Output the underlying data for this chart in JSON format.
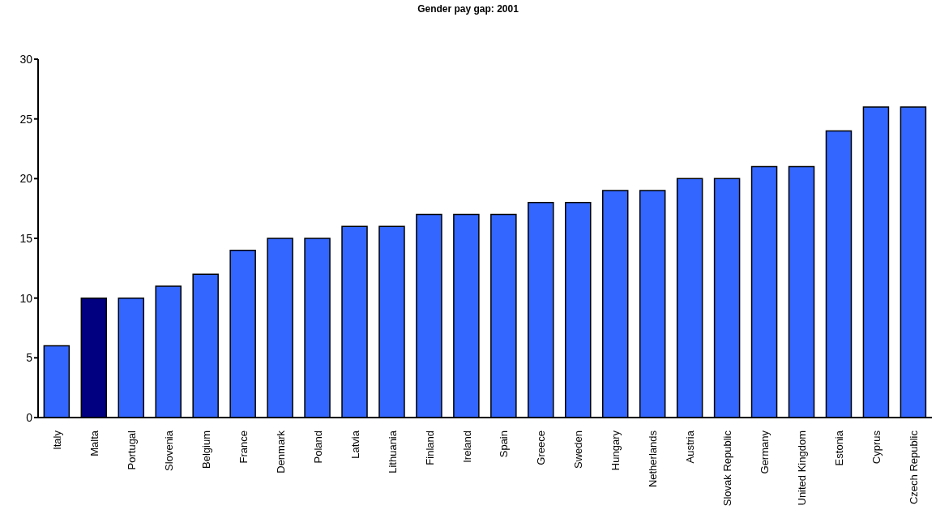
{
  "chart_data": {
    "type": "bar",
    "title": "Gender pay gap: 2001",
    "categories": [
      "Italy",
      "Malta",
      "Portugal",
      "Slovenia",
      "Belgium",
      "France",
      "Denmark",
      "Poland",
      "Latvia",
      "Lithuania",
      "Finland",
      "Ireland",
      "Spain",
      "Greece",
      "Sweden",
      "Hungary",
      "Netherlands",
      "Austria",
      "Slovak Republic",
      "Germany",
      "United Kingdom",
      "Estonia",
      "Cyprus",
      "Czech Republic"
    ],
    "values": [
      6,
      10,
      10,
      11,
      12,
      14,
      15,
      15,
      16,
      16,
      17,
      17,
      17,
      18,
      18,
      19,
      19,
      20,
      20,
      21,
      21,
      24,
      26,
      26
    ],
    "colors": [
      "#3366ff",
      "#000080",
      "#3366ff",
      "#3366ff",
      "#3366ff",
      "#3366ff",
      "#3366ff",
      "#3366ff",
      "#3366ff",
      "#3366ff",
      "#3366ff",
      "#3366ff",
      "#3366ff",
      "#3366ff",
      "#3366ff",
      "#3366ff",
      "#3366ff",
      "#3366ff",
      "#3366ff",
      "#3366ff",
      "#3366ff",
      "#3366ff",
      "#3366ff",
      "#3366ff"
    ],
    "ylim": [
      0,
      30
    ],
    "yticks": [
      0,
      5,
      10,
      15,
      20,
      25,
      30
    ]
  }
}
